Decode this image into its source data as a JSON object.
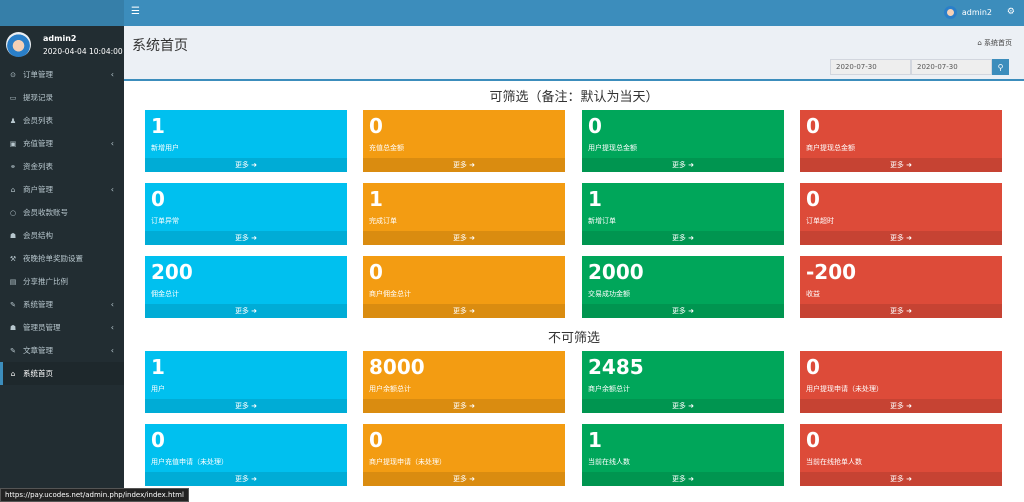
{
  "user": {
    "name": "admin2",
    "time": "2020-04-04 10:04:00"
  },
  "sidebar": {
    "items": [
      {
        "label": "订单管理",
        "icon": "circle-dot-icon",
        "chevron": true
      },
      {
        "label": "提现记录",
        "icon": "card-icon",
        "chevron": false
      },
      {
        "label": "会员列表",
        "icon": "user-icon",
        "chevron": false
      },
      {
        "label": "充值管理",
        "icon": "image-icon",
        "chevron": true
      },
      {
        "label": "资金列表",
        "icon": "link-icon",
        "chevron": false
      },
      {
        "label": "商户管理",
        "icon": "bank-icon",
        "chevron": true
      },
      {
        "label": "会员收款账号",
        "icon": "circle-icon",
        "chevron": false
      },
      {
        "label": "会员结构",
        "icon": "users-icon",
        "chevron": false
      },
      {
        "label": "夜晚抢单奖励设置",
        "icon": "gavel-icon",
        "chevron": false
      },
      {
        "label": "分享推广比例",
        "icon": "calculator-icon",
        "chevron": false
      },
      {
        "label": "系统管理",
        "icon": "wrench-icon",
        "chevron": true
      },
      {
        "label": "管理员管理",
        "icon": "users-icon",
        "chevron": true
      },
      {
        "label": "文章管理",
        "icon": "edit-icon",
        "chevron": true
      },
      {
        "label": "系统首页",
        "icon": "home-icon",
        "chevron": false,
        "active": true
      }
    ]
  },
  "topbar": {
    "user": "admin2"
  },
  "header": {
    "title": "系统首页",
    "breadcrumb": "系统首页",
    "date_from": "2020-07-30",
    "date_to": "2020-07-30"
  },
  "sections": [
    {
      "title": "可筛选（备注：默认为当天）",
      "cards": [
        {
          "value": "1",
          "label": "新增用户",
          "color": "aqua"
        },
        {
          "value": "0",
          "label": "充值总金额",
          "color": "orange"
        },
        {
          "value": "0",
          "label": "用户提现总金额",
          "color": "green"
        },
        {
          "value": "0",
          "label": "商户提现总金额",
          "color": "red"
        },
        {
          "value": "0",
          "label": "订单异常",
          "color": "aqua"
        },
        {
          "value": "1",
          "label": "完成订单",
          "color": "orange"
        },
        {
          "value": "1",
          "label": "新增订单",
          "color": "green"
        },
        {
          "value": "0",
          "label": "订单超时",
          "color": "red"
        },
        {
          "value": "200",
          "label": "佣金总计",
          "color": "aqua"
        },
        {
          "value": "0",
          "label": "商户佣金总计",
          "color": "orange"
        },
        {
          "value": "2000",
          "label": "交易成功金额",
          "color": "green"
        },
        {
          "value": "-200",
          "label": "收益",
          "color": "red"
        }
      ]
    },
    {
      "title": "不可筛选",
      "cards": [
        {
          "value": "1",
          "label": "用户",
          "color": "aqua"
        },
        {
          "value": "8000",
          "label": "用户余额总计",
          "color": "orange"
        },
        {
          "value": "2485",
          "label": "商户余额总计",
          "color": "green"
        },
        {
          "value": "0",
          "label": "用户提现申请（未处理）",
          "color": "red"
        },
        {
          "value": "0",
          "label": "用户充值申请（未处理）",
          "color": "aqua"
        },
        {
          "value": "0",
          "label": "商户提现申请（未处理）",
          "color": "orange"
        },
        {
          "value": "1",
          "label": "当前在线人数",
          "color": "green"
        },
        {
          "value": "0",
          "label": "当前在线抢单人数",
          "color": "red"
        }
      ]
    }
  ],
  "more_label": "更多",
  "status_url": "https://pay.ucodes.net/admin.php/index/index.html"
}
